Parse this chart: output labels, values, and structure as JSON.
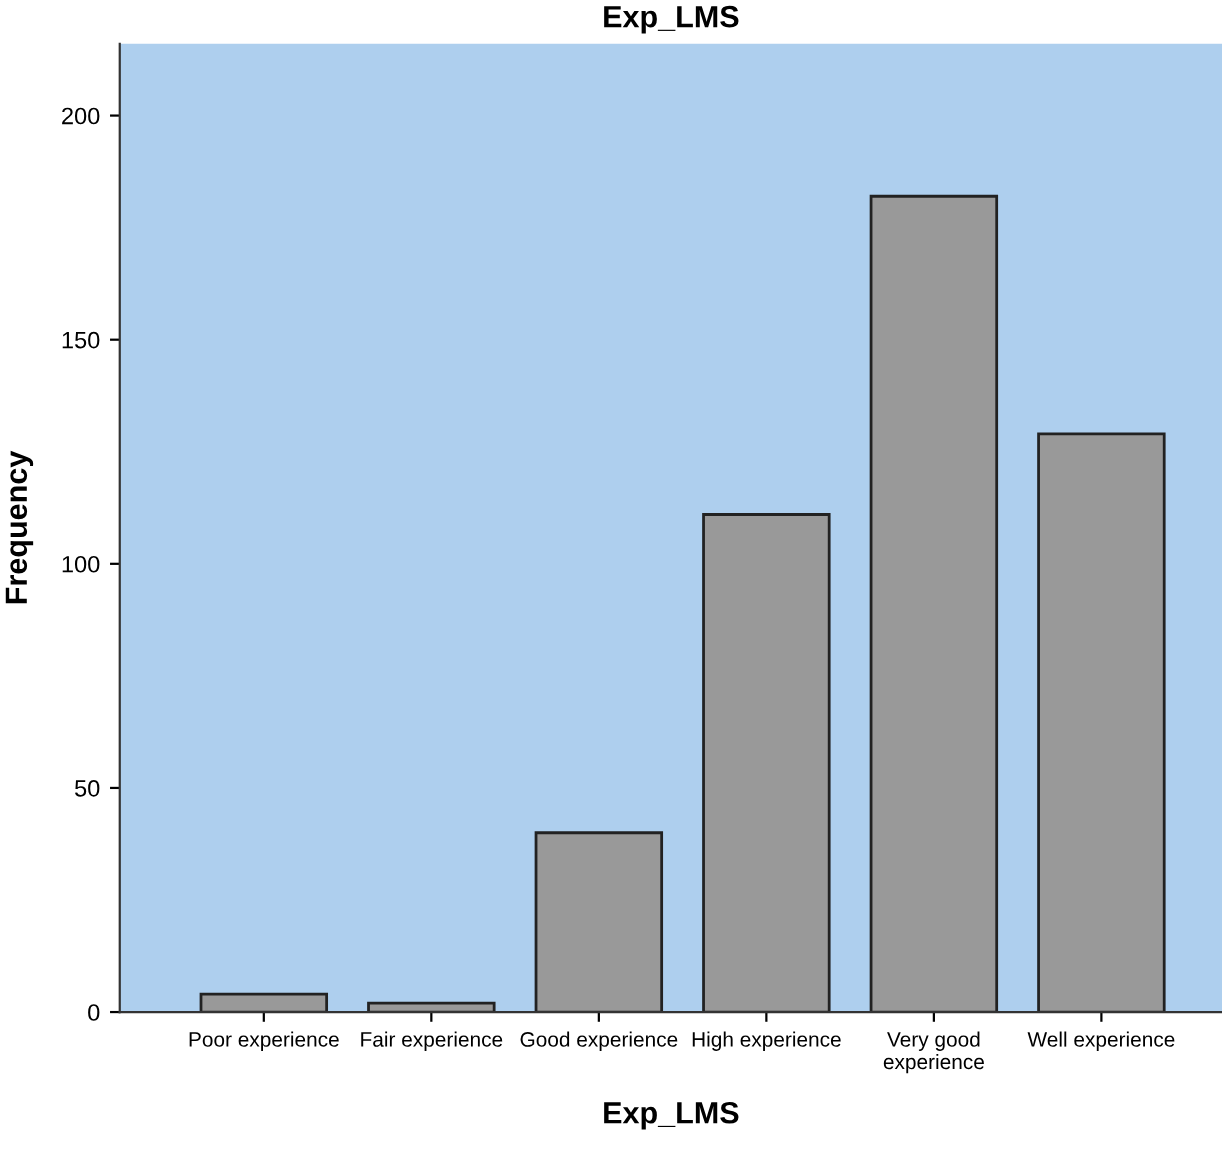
{
  "chart_data": {
    "type": "bar",
    "title": "Exp_LMS",
    "xlabel": "Exp_LMS",
    "ylabel": "Frequency",
    "categories": [
      "Poor experience",
      "Fair experience",
      "Good experience",
      "High experience",
      "Very good\nexperience",
      "Well experience"
    ],
    "values": [
      4,
      2,
      40,
      111,
      182,
      129
    ],
    "color": "#999999",
    "ylim": [
      0,
      216
    ],
    "yticks": [
      0,
      50,
      100,
      150,
      200
    ],
    "grid": false,
    "legend": false
  }
}
